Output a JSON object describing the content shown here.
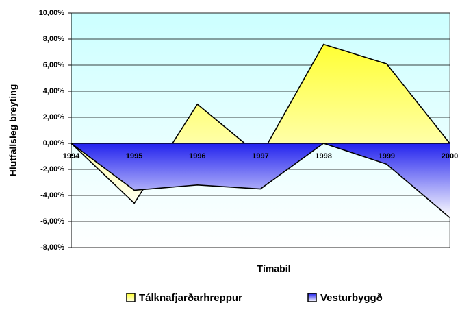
{
  "chart_data": {
    "type": "area",
    "x_label": "Tímabil",
    "y_label": "Hlutfallsleg breyting",
    "categories": [
      "1994",
      "1995",
      "1996",
      "1997",
      "1998",
      "1999",
      "2000"
    ],
    "series": [
      {
        "name": "Tálknafjarðarhreppur",
        "color": "#ffff33",
        "values": [
          0,
          -4.6,
          3.0,
          -1.0,
          7.6,
          6.1,
          0
        ]
      },
      {
        "name": "Vesturbyggð",
        "color": "#2222ee",
        "values": [
          0,
          -3.6,
          -3.2,
          -3.5,
          0,
          -1.6,
          -5.7
        ]
      }
    ],
    "ylim": [
      -8,
      10
    ],
    "yticks": [
      {
        "value": -8,
        "label": "-8,00%"
      },
      {
        "value": -6,
        "label": "-6,00%"
      },
      {
        "value": -4,
        "label": "-4,00%"
      },
      {
        "value": -2,
        "label": "-2,00%"
      },
      {
        "value": 0,
        "label": "0,00%"
      },
      {
        "value": 2,
        "label": "2,00%"
      },
      {
        "value": 4,
        "label": "4,00%"
      },
      {
        "value": 6,
        "label": "6,00%"
      },
      {
        "value": 8,
        "label": "8,00%"
      },
      {
        "value": 10,
        "label": "10,00%"
      }
    ],
    "grid": true,
    "legend": "bottom"
  }
}
